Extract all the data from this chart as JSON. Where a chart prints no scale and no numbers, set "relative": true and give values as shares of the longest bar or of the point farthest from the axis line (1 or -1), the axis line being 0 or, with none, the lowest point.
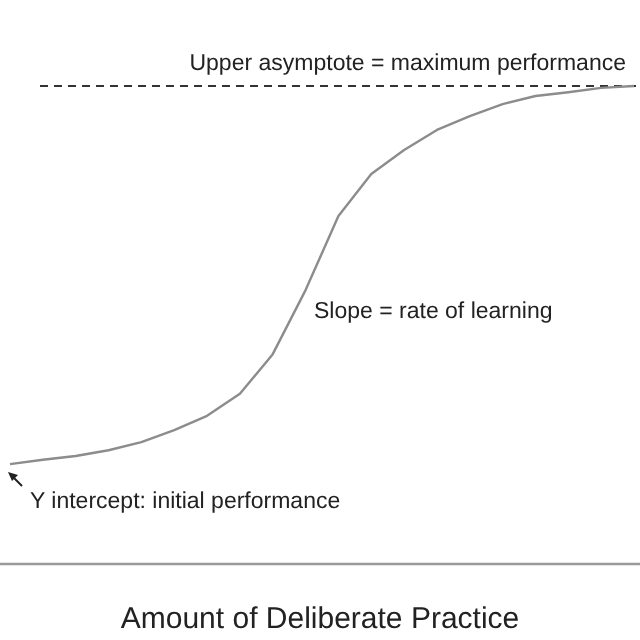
{
  "chart_data": {
    "type": "line",
    "relative": true,
    "xlabel": "Amount of Deliberate Practice",
    "categories": [
      null,
      null,
      null,
      null,
      null,
      null,
      null,
      null,
      null,
      null,
      null,
      null,
      null,
      null,
      null,
      null,
      null,
      null,
      null,
      null
    ],
    "series": [
      {
        "color": "#8c8c8c",
        "values": [
          0.209,
          0.218,
          0.226,
          0.238,
          0.255,
          0.28,
          0.31,
          0.356,
          0.439,
          0.573,
          0.728,
          0.816,
          0.866,
          0.908,
          0.937,
          0.962,
          0.979,
          0.987,
          0.996,
          1.0
        ]
      }
    ],
    "ref_lines": [
      {
        "axis": "y",
        "value": 1.0,
        "label": "Upper asymptote = maximum performance",
        "color": "#333333",
        "line_style": "dashed"
      }
    ],
    "annotations": [
      "Slope = rate of learning",
      "Y intercept: initial performance"
    ],
    "marker": "none",
    "line_style": "solid"
  }
}
